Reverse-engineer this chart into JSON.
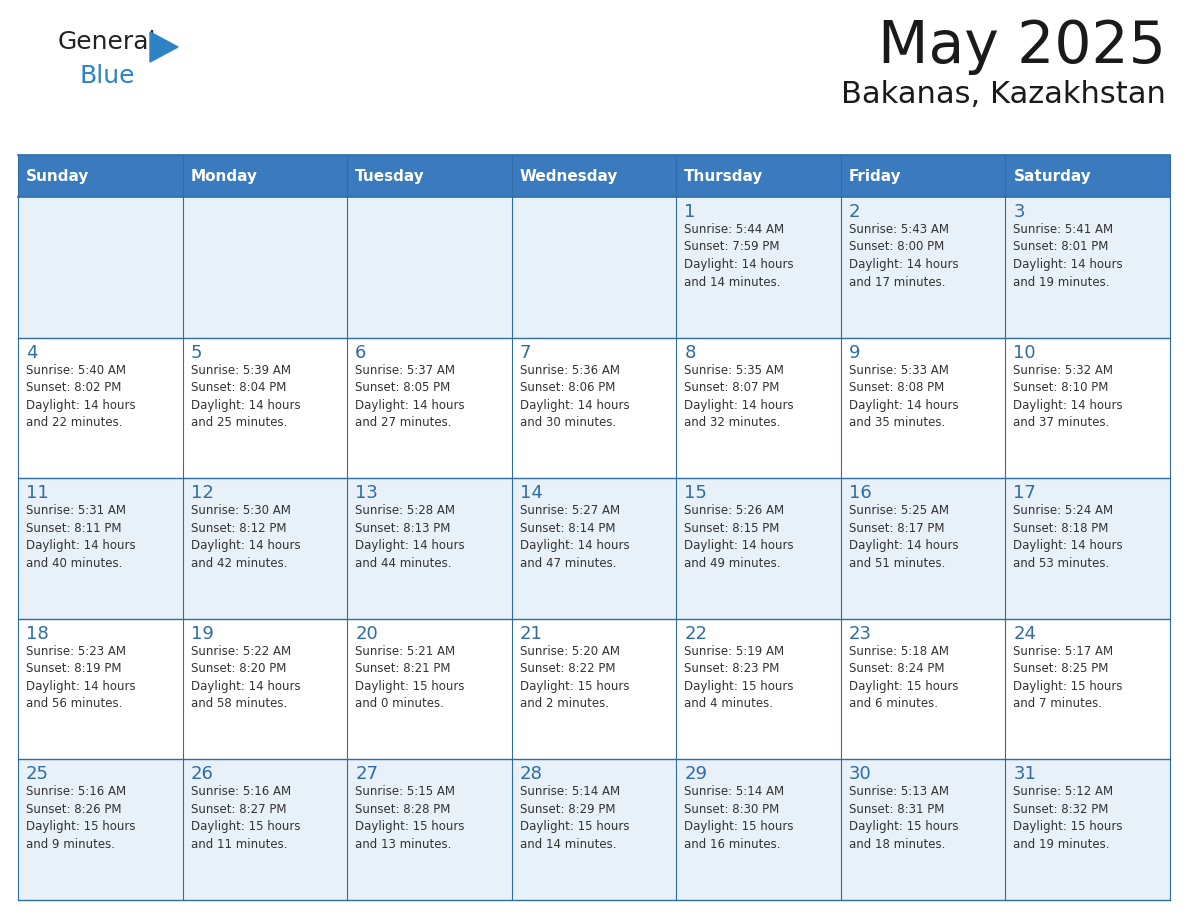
{
  "title": "May 2025",
  "subtitle": "Bakanas, Kazakhstan",
  "header_color": "#3a7abf",
  "header_text_color": "#ffffff",
  "background_color": "#ffffff",
  "cell_bg_alt": "#e8f0f8",
  "days_of_week": [
    "Sunday",
    "Monday",
    "Tuesday",
    "Wednesday",
    "Thursday",
    "Friday",
    "Saturday"
  ],
  "weeks": [
    [
      {
        "day": "",
        "info": ""
      },
      {
        "day": "",
        "info": ""
      },
      {
        "day": "",
        "info": ""
      },
      {
        "day": "",
        "info": ""
      },
      {
        "day": "1",
        "info": "Sunrise: 5:44 AM\nSunset: 7:59 PM\nDaylight: 14 hours\nand 14 minutes."
      },
      {
        "day": "2",
        "info": "Sunrise: 5:43 AM\nSunset: 8:00 PM\nDaylight: 14 hours\nand 17 minutes."
      },
      {
        "day": "3",
        "info": "Sunrise: 5:41 AM\nSunset: 8:01 PM\nDaylight: 14 hours\nand 19 minutes."
      }
    ],
    [
      {
        "day": "4",
        "info": "Sunrise: 5:40 AM\nSunset: 8:02 PM\nDaylight: 14 hours\nand 22 minutes."
      },
      {
        "day": "5",
        "info": "Sunrise: 5:39 AM\nSunset: 8:04 PM\nDaylight: 14 hours\nand 25 minutes."
      },
      {
        "day": "6",
        "info": "Sunrise: 5:37 AM\nSunset: 8:05 PM\nDaylight: 14 hours\nand 27 minutes."
      },
      {
        "day": "7",
        "info": "Sunrise: 5:36 AM\nSunset: 8:06 PM\nDaylight: 14 hours\nand 30 minutes."
      },
      {
        "day": "8",
        "info": "Sunrise: 5:35 AM\nSunset: 8:07 PM\nDaylight: 14 hours\nand 32 minutes."
      },
      {
        "day": "9",
        "info": "Sunrise: 5:33 AM\nSunset: 8:08 PM\nDaylight: 14 hours\nand 35 minutes."
      },
      {
        "day": "10",
        "info": "Sunrise: 5:32 AM\nSunset: 8:10 PM\nDaylight: 14 hours\nand 37 minutes."
      }
    ],
    [
      {
        "day": "11",
        "info": "Sunrise: 5:31 AM\nSunset: 8:11 PM\nDaylight: 14 hours\nand 40 minutes."
      },
      {
        "day": "12",
        "info": "Sunrise: 5:30 AM\nSunset: 8:12 PM\nDaylight: 14 hours\nand 42 minutes."
      },
      {
        "day": "13",
        "info": "Sunrise: 5:28 AM\nSunset: 8:13 PM\nDaylight: 14 hours\nand 44 minutes."
      },
      {
        "day": "14",
        "info": "Sunrise: 5:27 AM\nSunset: 8:14 PM\nDaylight: 14 hours\nand 47 minutes."
      },
      {
        "day": "15",
        "info": "Sunrise: 5:26 AM\nSunset: 8:15 PM\nDaylight: 14 hours\nand 49 minutes."
      },
      {
        "day": "16",
        "info": "Sunrise: 5:25 AM\nSunset: 8:17 PM\nDaylight: 14 hours\nand 51 minutes."
      },
      {
        "day": "17",
        "info": "Sunrise: 5:24 AM\nSunset: 8:18 PM\nDaylight: 14 hours\nand 53 minutes."
      }
    ],
    [
      {
        "day": "18",
        "info": "Sunrise: 5:23 AM\nSunset: 8:19 PM\nDaylight: 14 hours\nand 56 minutes."
      },
      {
        "day": "19",
        "info": "Sunrise: 5:22 AM\nSunset: 8:20 PM\nDaylight: 14 hours\nand 58 minutes."
      },
      {
        "day": "20",
        "info": "Sunrise: 5:21 AM\nSunset: 8:21 PM\nDaylight: 15 hours\nand 0 minutes."
      },
      {
        "day": "21",
        "info": "Sunrise: 5:20 AM\nSunset: 8:22 PM\nDaylight: 15 hours\nand 2 minutes."
      },
      {
        "day": "22",
        "info": "Sunrise: 5:19 AM\nSunset: 8:23 PM\nDaylight: 15 hours\nand 4 minutes."
      },
      {
        "day": "23",
        "info": "Sunrise: 5:18 AM\nSunset: 8:24 PM\nDaylight: 15 hours\nand 6 minutes."
      },
      {
        "day": "24",
        "info": "Sunrise: 5:17 AM\nSunset: 8:25 PM\nDaylight: 15 hours\nand 7 minutes."
      }
    ],
    [
      {
        "day": "25",
        "info": "Sunrise: 5:16 AM\nSunset: 8:26 PM\nDaylight: 15 hours\nand 9 minutes."
      },
      {
        "day": "26",
        "info": "Sunrise: 5:16 AM\nSunset: 8:27 PM\nDaylight: 15 hours\nand 11 minutes."
      },
      {
        "day": "27",
        "info": "Sunrise: 5:15 AM\nSunset: 8:28 PM\nDaylight: 15 hours\nand 13 minutes."
      },
      {
        "day": "28",
        "info": "Sunrise: 5:14 AM\nSunset: 8:29 PM\nDaylight: 15 hours\nand 14 minutes."
      },
      {
        "day": "29",
        "info": "Sunrise: 5:14 AM\nSunset: 8:30 PM\nDaylight: 15 hours\nand 16 minutes."
      },
      {
        "day": "30",
        "info": "Sunrise: 5:13 AM\nSunset: 8:31 PM\nDaylight: 15 hours\nand 18 minutes."
      },
      {
        "day": "31",
        "info": "Sunrise: 5:12 AM\nSunset: 8:32 PM\nDaylight: 15 hours\nand 19 minutes."
      }
    ]
  ]
}
